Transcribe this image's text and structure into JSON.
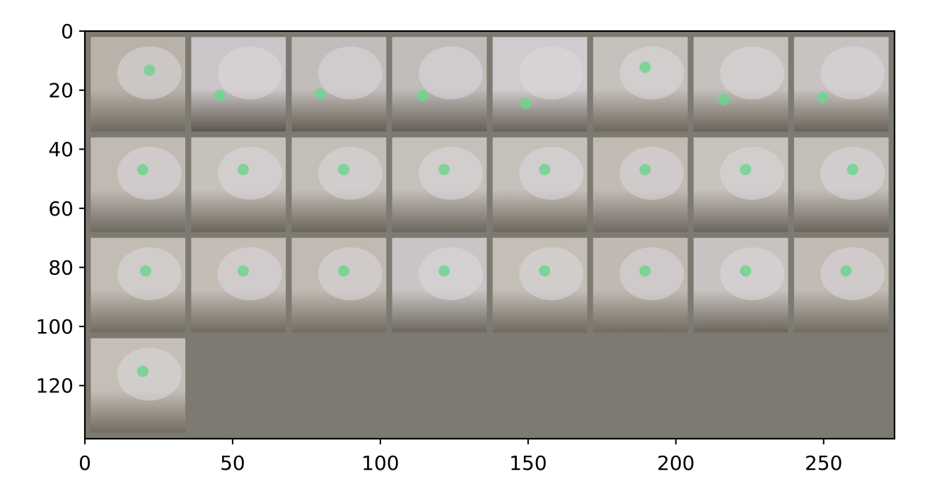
{
  "chart_data": {
    "type": "heatmap",
    "title": "",
    "xlabel": "",
    "ylabel": "",
    "xlim": [
      0,
      274
    ],
    "ylim": [
      138,
      0
    ],
    "xticks": [
      0,
      50,
      100,
      150,
      200,
      250
    ],
    "yticks": [
      0,
      20,
      40,
      60,
      80,
      100,
      120
    ],
    "grid": false,
    "image_grid": {
      "rows": 4,
      "cols": 8,
      "tile_size": 32,
      "padding": 2,
      "tile_count": 25,
      "background_color": "#7d7a72"
    },
    "tiles": [
      {
        "row": 0,
        "col": 0,
        "dot": [
          0.62,
          0.35
        ],
        "tone": "#b9b2a8",
        "dark": "#6f6a60"
      },
      {
        "row": 0,
        "col": 1,
        "dot": [
          0.3,
          0.62
        ],
        "tone": "#c9c5c8",
        "dark": "#5f574c"
      },
      {
        "row": 0,
        "col": 2,
        "dot": [
          0.3,
          0.6
        ],
        "tone": "#c2bdbb",
        "dark": "#665e53"
      },
      {
        "row": 0,
        "col": 3,
        "dot": [
          0.32,
          0.62
        ],
        "tone": "#c0bcba",
        "dark": "#685f55"
      },
      {
        "row": 0,
        "col": 4,
        "dot": [
          0.35,
          0.7
        ],
        "tone": "#cfcbce",
        "dark": "#6b6357"
      },
      {
        "row": 0,
        "col": 5,
        "dot": [
          0.55,
          0.32
        ],
        "tone": "#c6c0bc",
        "dark": "#6e675c"
      },
      {
        "row": 0,
        "col": 6,
        "dot": [
          0.32,
          0.66
        ],
        "tone": "#c5c0bc",
        "dark": "#6a6258"
      },
      {
        "row": 0,
        "col": 7,
        "dot": [
          0.3,
          0.64
        ],
        "tone": "#c8c2c0",
        "dark": "#6a6358"
      },
      {
        "row": 1,
        "col": 0,
        "dot": [
          0.55,
          0.34
        ],
        "tone": "#c0bab3",
        "dark": "#6f6a60"
      },
      {
        "row": 1,
        "col": 1,
        "dot": [
          0.55,
          0.34
        ],
        "tone": "#c7c1bb",
        "dark": "#6b655b"
      },
      {
        "row": 1,
        "col": 2,
        "dot": [
          0.55,
          0.34
        ],
        "tone": "#c4beb8",
        "dark": "#6b655b"
      },
      {
        "row": 1,
        "col": 3,
        "dot": [
          0.55,
          0.34
        ],
        "tone": "#c6c0bb",
        "dark": "#6c665c"
      },
      {
        "row": 1,
        "col": 4,
        "dot": [
          0.55,
          0.34
        ],
        "tone": "#c6c0ba",
        "dark": "#6d675d"
      },
      {
        "row": 1,
        "col": 5,
        "dot": [
          0.55,
          0.34
        ],
        "tone": "#c1bbb4",
        "dark": "#706a61"
      },
      {
        "row": 1,
        "col": 6,
        "dot": [
          0.55,
          0.34
        ],
        "tone": "#c8c2bd",
        "dark": "#6b655b"
      },
      {
        "row": 1,
        "col": 7,
        "dot": [
          0.62,
          0.34
        ],
        "tone": "#c4beb9",
        "dark": "#6b655b"
      },
      {
        "row": 2,
        "col": 0,
        "dot": [
          0.58,
          0.35
        ],
        "tone": "#c2bcb4",
        "dark": "#716b61"
      },
      {
        "row": 2,
        "col": 1,
        "dot": [
          0.55,
          0.35
        ],
        "tone": "#c3bdb6",
        "dark": "#706a60"
      },
      {
        "row": 2,
        "col": 2,
        "dot": [
          0.55,
          0.35
        ],
        "tone": "#c0bab2",
        "dark": "#726c62"
      },
      {
        "row": 2,
        "col": 3,
        "dot": [
          0.55,
          0.35
        ],
        "tone": "#cac5c4",
        "dark": "#6c665c"
      },
      {
        "row": 2,
        "col": 4,
        "dot": [
          0.55,
          0.35
        ],
        "tone": "#c4beb7",
        "dark": "#6f695f"
      },
      {
        "row": 2,
        "col": 5,
        "dot": [
          0.55,
          0.35
        ],
        "tone": "#bfb9b2",
        "dark": "#716b61"
      },
      {
        "row": 2,
        "col": 6,
        "dot": [
          0.55,
          0.35
        ],
        "tone": "#c8c3c0",
        "dark": "#6c665c"
      },
      {
        "row": 2,
        "col": 7,
        "dot": [
          0.55,
          0.35
        ],
        "tone": "#c1bbb3",
        "dark": "#716b61"
      },
      {
        "row": 3,
        "col": 0,
        "dot": [
          0.55,
          0.35
        ],
        "tone": "#c4beb6",
        "dark": "#716b61"
      }
    ]
  }
}
